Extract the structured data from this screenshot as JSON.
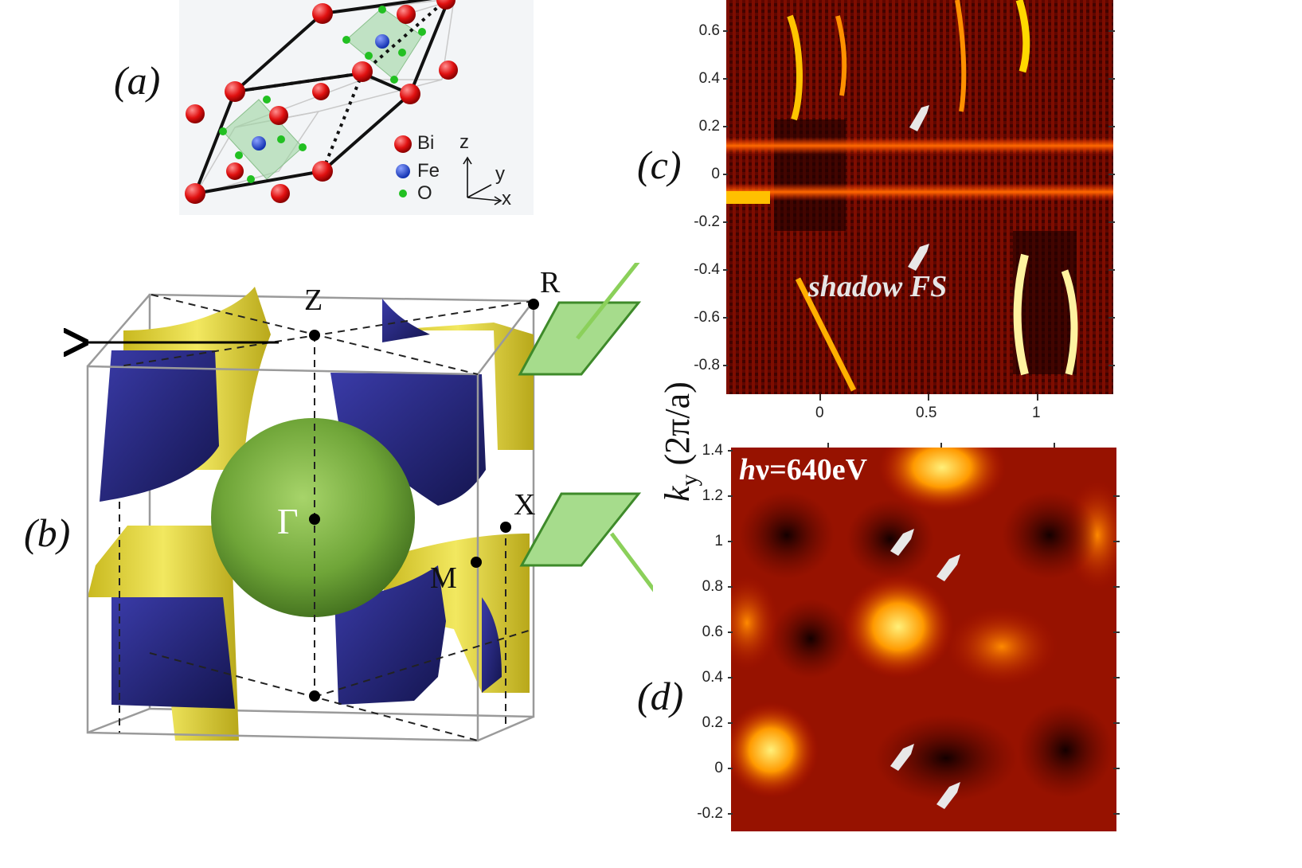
{
  "panels": {
    "a": "(a)",
    "b": "(b)",
    "c": "(c)",
    "d": "(d)"
  },
  "crystal": {
    "legend": [
      {
        "label": "Bi",
        "color": "#e01010"
      },
      {
        "label": "Fe",
        "color": "#1f3fd6"
      },
      {
        "label": "O",
        "color": "#22c022"
      }
    ],
    "axes": {
      "z": "z",
      "y": "y",
      "x": "x"
    }
  },
  "brillouin": {
    "points": {
      "Z": "Z",
      "R": "R",
      "Gamma": "Γ",
      "X": "X",
      "M": "M"
    },
    "colors": {
      "blue_sheet": "#2d2e8f",
      "yellow_sheet": "#e3d83a",
      "green_pocket": "#6fa538",
      "plane": "#a6dc8c"
    }
  },
  "map_c": {
    "annotation": "shadow FS",
    "y_ticks": [
      "0.6",
      "0.4",
      "0.2",
      "0",
      "-0.2",
      "-0.4",
      "-0.6",
      "-0.8"
    ],
    "x_ticks": [
      "0",
      "0.5",
      "1"
    ]
  },
  "map_d": {
    "photon_energy_h": "h",
    "photon_energy_rest": "ν=640eV",
    "y_ticks": [
      "1.4",
      "1.2",
      "1",
      "0.8",
      "0.6",
      "0.4",
      "0.2",
      "0",
      "-0.2"
    ]
  },
  "axis_label": {
    "k": "k",
    "sub": "y",
    "units": "(2π/a)"
  }
}
